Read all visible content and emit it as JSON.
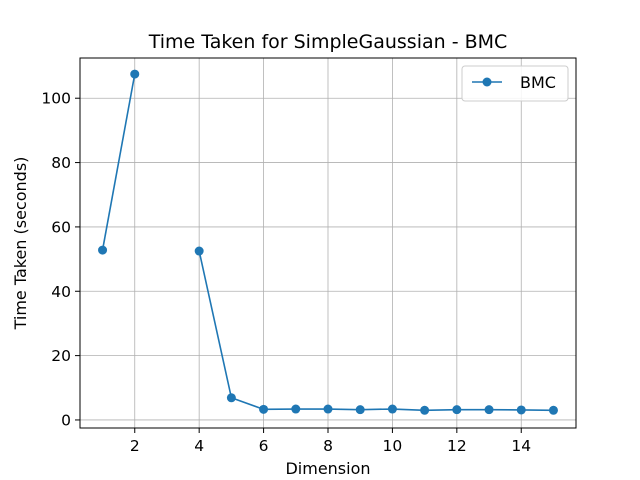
{
  "chart_data": {
    "type": "line",
    "title": "Time Taken for SimpleGaussian - BMC",
    "xlabel": "Dimension",
    "ylabel": "Time Taken (seconds)",
    "xlim": [
      0.3,
      15.7
    ],
    "ylim": [
      -2.5,
      112.5
    ],
    "xticks": [
      2,
      4,
      6,
      8,
      10,
      12,
      14
    ],
    "yticks": [
      0,
      20,
      40,
      60,
      80,
      100
    ],
    "grid": true,
    "legend_position": "top-right",
    "series": [
      {
        "name": "BMC",
        "color": "#1f77b4",
        "marker": "circle",
        "segments": [
          [
            [
              1,
              52.8
            ],
            [
              2,
              107.5
            ]
          ],
          [
            [
              4,
              52.5
            ],
            [
              5,
              6.9
            ],
            [
              6,
              3.3
            ],
            [
              7,
              3.4
            ],
            [
              8,
              3.4
            ],
            [
              9,
              3.2
            ],
            [
              10,
              3.4
            ],
            [
              11,
              3.0
            ],
            [
              12,
              3.2
            ],
            [
              13,
              3.2
            ],
            [
              14,
              3.1
            ],
            [
              15,
              3.0
            ]
          ]
        ]
      }
    ]
  }
}
